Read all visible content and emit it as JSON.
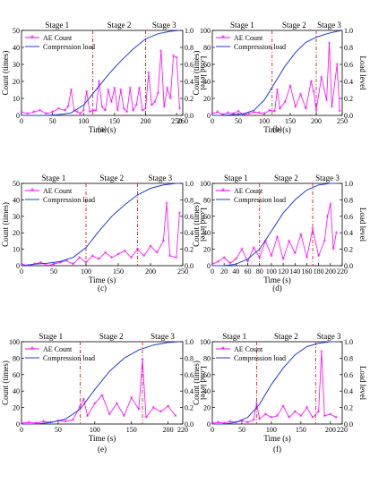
{
  "figure": {
    "panel_captions": [
      "(a)",
      "(b)",
      "(c)",
      "(d)",
      "(e)",
      "(f)"
    ],
    "legend": {
      "count_label": "AE Count",
      "load_label": "Compression load"
    },
    "stage_labels": [
      "Stage 1",
      "Stage 2",
      "Stage 3"
    ],
    "xlabel": "Time (s)",
    "ylabel_left": "Count (times)",
    "ylabel_right": "Load level"
  },
  "colors": {
    "count": "#ff00ff",
    "load": "#1f3bd6",
    "stage_line": "#e02020",
    "frame": "#000000"
  },
  "chart_data": [
    {
      "type": "line",
      "panel": "(a)",
      "xlim": [
        0,
        260
      ],
      "xticks": [
        0,
        50,
        100,
        150,
        200,
        250,
        260
      ],
      "ylim_left": [
        0,
        50
      ],
      "yticks_left": [
        0,
        10,
        20,
        30,
        40,
        50
      ],
      "ylim_right": [
        0,
        1.0
      ],
      "yticks_right": [
        "0.0",
        "0.2",
        "0.4",
        "0.6",
        "0.8",
        "1.0"
      ],
      "stage_boundaries": [
        115,
        200
      ],
      "series": [
        {
          "name": "AE Count",
          "axis": "left",
          "x": [
            0,
            10,
            20,
            30,
            40,
            50,
            60,
            70,
            75,
            80,
            85,
            90,
            95,
            100,
            105,
            110,
            115,
            120,
            125,
            130,
            135,
            140,
            145,
            150,
            155,
            160,
            165,
            170,
            175,
            180,
            185,
            190,
            195,
            200,
            205,
            210,
            215,
            220,
            225,
            230,
            235,
            240,
            245,
            250,
            255
          ],
          "y": [
            2,
            1,
            2,
            3,
            1,
            2,
            4,
            3,
            5,
            15,
            3,
            2,
            1,
            3,
            14,
            2,
            3,
            3,
            20,
            5,
            3,
            15,
            8,
            16,
            3,
            15,
            4,
            2,
            16,
            3,
            6,
            16,
            3,
            4,
            25,
            6,
            8,
            13,
            38,
            5,
            16,
            10,
            35,
            34,
            4
          ]
        },
        {
          "name": "Compression load",
          "axis": "right",
          "x": [
            0,
            20,
            40,
            60,
            80,
            100,
            120,
            140,
            160,
            180,
            200,
            220,
            240,
            255
          ],
          "y": [
            0.0,
            0.0,
            0.0,
            0.01,
            0.03,
            0.12,
            0.3,
            0.48,
            0.64,
            0.78,
            0.9,
            0.96,
            0.99,
            1.0
          ]
        }
      ]
    },
    {
      "type": "line",
      "panel": "(b)",
      "xlim": [
        0,
        250
      ],
      "xticks": [
        0,
        50,
        100,
        150,
        200,
        250
      ],
      "ylim_left": [
        0,
        100
      ],
      "yticks_left": [
        0,
        20,
        40,
        60,
        80,
        100
      ],
      "ylim_right": [
        0,
        1.0
      ],
      "yticks_right": [
        "0.0",
        "0.2",
        "0.4",
        "0.6",
        "0.8",
        "1.0"
      ],
      "stage_boundaries": [
        115,
        200
      ],
      "series": [
        {
          "name": "AE Count",
          "axis": "left",
          "x": [
            0,
            10,
            20,
            30,
            40,
            50,
            60,
            70,
            80,
            90,
            100,
            110,
            120,
            125,
            130,
            140,
            150,
            160,
            170,
            180,
            190,
            195,
            200,
            210,
            220,
            225,
            230,
            240,
            245
          ],
          "y": [
            2,
            4,
            1,
            3,
            2,
            5,
            1,
            2,
            4,
            3,
            2,
            6,
            5,
            30,
            8,
            16,
            35,
            10,
            25,
            8,
            40,
            28,
            6,
            45,
            18,
            85,
            10,
            60,
            5
          ]
        },
        {
          "name": "Compression load",
          "axis": "right",
          "x": [
            0,
            20,
            40,
            60,
            80,
            100,
            120,
            140,
            160,
            180,
            200,
            220,
            240,
            250
          ],
          "y": [
            0.0,
            0.0,
            0.01,
            0.02,
            0.06,
            0.18,
            0.38,
            0.58,
            0.74,
            0.86,
            0.92,
            0.96,
            0.99,
            1.0
          ]
        }
      ]
    },
    {
      "type": "line",
      "panel": "(c)",
      "xlim": [
        0,
        250
      ],
      "xticks": [
        0,
        50,
        100,
        150,
        200,
        250
      ],
      "ylim_left": [
        0,
        50
      ],
      "yticks_left": [
        0,
        10,
        20,
        30,
        40,
        50
      ],
      "ylim_right": [
        0,
        1.0
      ],
      "yticks_right": [
        "0.0",
        "0.2",
        "0.4",
        "0.6",
        "0.8",
        "1.0"
      ],
      "stage_boundaries": [
        100,
        180
      ],
      "series": [
        {
          "name": "AE Count",
          "axis": "left",
          "x": [
            0,
            10,
            20,
            30,
            40,
            50,
            60,
            70,
            80,
            90,
            100,
            110,
            120,
            130,
            140,
            150,
            160,
            170,
            180,
            190,
            200,
            210,
            220,
            225,
            230,
            240,
            245
          ],
          "y": [
            1,
            0,
            1,
            2,
            0,
            1,
            2,
            3,
            1,
            5,
            2,
            6,
            4,
            8,
            5,
            7,
            9,
            5,
            10,
            6,
            12,
            8,
            15,
            38,
            6,
            5,
            32
          ]
        },
        {
          "name": "Compression load",
          "axis": "right",
          "x": [
            0,
            20,
            40,
            60,
            80,
            100,
            120,
            140,
            160,
            180,
            200,
            220,
            240,
            245
          ],
          "y": [
            0.0,
            0.02,
            0.03,
            0.05,
            0.1,
            0.22,
            0.42,
            0.6,
            0.74,
            0.86,
            0.94,
            0.98,
            1.0,
            1.0
          ]
        }
      ]
    },
    {
      "type": "line",
      "panel": "(d)",
      "xlim": [
        0,
        220
      ],
      "xticks": [
        0,
        20,
        40,
        60,
        80,
        100,
        120,
        140,
        160,
        180,
        200,
        220
      ],
      "ylim_left": [
        0,
        100
      ],
      "yticks_left": [
        0,
        20,
        40,
        60,
        80,
        100
      ],
      "ylim_right": [
        0,
        1.0
      ],
      "yticks_right": [
        "0.0",
        "0.2",
        "0.4",
        "0.6",
        "0.8",
        "1.0"
      ],
      "stage_boundaries": [
        80,
        170
      ],
      "series": [
        {
          "name": "AE Count",
          "axis": "left",
          "x": [
            0,
            10,
            20,
            30,
            40,
            50,
            60,
            70,
            80,
            90,
            100,
            110,
            120,
            130,
            140,
            150,
            160,
            170,
            180,
            190,
            195,
            200,
            205,
            210
          ],
          "y": [
            2,
            5,
            10,
            3,
            8,
            20,
            5,
            22,
            10,
            30,
            12,
            35,
            8,
            30,
            15,
            38,
            10,
            45,
            12,
            30,
            60,
            75,
            20,
            40
          ]
        },
        {
          "name": "Compression load",
          "axis": "right",
          "x": [
            0,
            20,
            40,
            60,
            80,
            100,
            120,
            140,
            160,
            180,
            200,
            210
          ],
          "y": [
            0.0,
            0.0,
            0.02,
            0.08,
            0.2,
            0.42,
            0.64,
            0.8,
            0.92,
            0.98,
            1.0,
            1.0
          ]
        }
      ]
    },
    {
      "type": "line",
      "panel": "(e)",
      "xlim": [
        0,
        220
      ],
      "xticks": [
        0,
        50,
        100,
        150,
        200,
        220
      ],
      "ylim_left": [
        0,
        100
      ],
      "yticks_left": [
        0,
        20,
        40,
        60,
        80,
        100
      ],
      "ylim_right": [
        0,
        1.0
      ],
      "yticks_right": [
        "0.0",
        "0.2",
        "0.4",
        "0.6",
        "0.8",
        "1.0"
      ],
      "stage_boundaries": [
        80,
        165
      ],
      "series": [
        {
          "name": "AE Count",
          "axis": "left",
          "x": [
            0,
            10,
            20,
            30,
            40,
            50,
            60,
            70,
            80,
            85,
            90,
            100,
            110,
            120,
            130,
            140,
            150,
            160,
            165,
            170,
            180,
            190,
            200,
            210
          ],
          "y": [
            1,
            2,
            1,
            3,
            2,
            4,
            3,
            5,
            22,
            30,
            10,
            25,
            35,
            12,
            25,
            10,
            32,
            18,
            78,
            8,
            20,
            15,
            22,
            10
          ]
        },
        {
          "name": "Compression load",
          "axis": "right",
          "x": [
            0,
            20,
            40,
            60,
            80,
            100,
            120,
            140,
            160,
            180,
            200,
            215
          ],
          "y": [
            0.0,
            0.0,
            0.02,
            0.06,
            0.18,
            0.42,
            0.64,
            0.8,
            0.9,
            0.96,
            0.99,
            1.0
          ]
        }
      ]
    },
    {
      "type": "line",
      "panel": "(f)",
      "xlim": [
        0,
        220
      ],
      "xticks": [
        0,
        50,
        100,
        150,
        200,
        220
      ],
      "ylim_left": [
        0,
        100
      ],
      "yticks_left": [
        0,
        20,
        40,
        60,
        80,
        100
      ],
      "ylim_right": [
        0,
        1.0
      ],
      "yticks_right": [
        "0.0",
        "0.2",
        "0.4",
        "0.6",
        "0.8",
        "1.0"
      ],
      "stage_boundaries": [
        75,
        175
      ],
      "series": [
        {
          "name": "AE Count",
          "axis": "left",
          "x": [
            0,
            10,
            20,
            30,
            40,
            50,
            60,
            70,
            75,
            80,
            90,
            100,
            110,
            120,
            130,
            140,
            150,
            160,
            170,
            180,
            185,
            190,
            200,
            210
          ],
          "y": [
            1,
            2,
            1,
            3,
            2,
            4,
            2,
            5,
            25,
            6,
            12,
            8,
            10,
            22,
            8,
            15,
            10,
            20,
            8,
            15,
            88,
            10,
            12,
            8
          ]
        },
        {
          "name": "Compression load",
          "axis": "right",
          "x": [
            0,
            20,
            40,
            60,
            80,
            100,
            120,
            140,
            160,
            180,
            200,
            210
          ],
          "y": [
            0.0,
            0.0,
            0.02,
            0.08,
            0.24,
            0.48,
            0.68,
            0.84,
            0.94,
            0.98,
            1.0,
            1.0
          ]
        }
      ]
    }
  ]
}
